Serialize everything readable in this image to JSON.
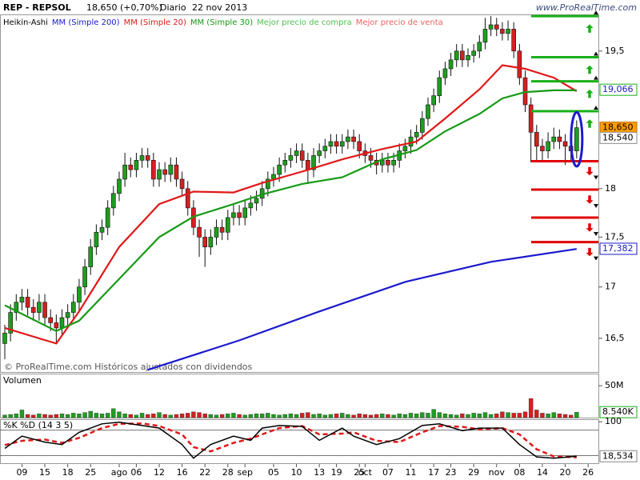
{
  "header": {
    "symbol": "REP - REPSOL",
    "price": "18,650 (+0,70%)",
    "period": "Diario",
    "date": "22 nov 2013",
    "brand": "www.ProRealTime.com"
  },
  "footer": "© ProRealTime.com Históricos ajustados con dividendos",
  "chart_data": [
    {
      "type": "candlestick",
      "name": "Heikin-Ashi",
      "scale": "log",
      "ylim": [
        16.18,
        19.92
      ],
      "xlim": [
        -0.84,
        103.8
      ],
      "yticks": [
        {
          "value": 16.5,
          "label": "16,5"
        },
        17,
        {
          "value": 17.5,
          "label": "17,5"
        },
        18,
        {
          "value": 19.5,
          "label": "19,5"
        }
      ],
      "up_color": "#1e9e1e",
      "down_color": "#d42020",
      "candles": [
        [
          16.45,
          16.63,
          16.3,
          16.55
        ],
        [
          16.55,
          16.83,
          16.47,
          16.75
        ],
        [
          16.75,
          16.93,
          16.67,
          16.85
        ],
        [
          16.85,
          16.98,
          16.77,
          16.9
        ],
        [
          16.9,
          16.98,
          16.72,
          16.8
        ],
        [
          16.8,
          16.88,
          16.67,
          16.75
        ],
        [
          16.75,
          16.93,
          16.67,
          16.85
        ],
        [
          16.85,
          16.93,
          16.62,
          16.7
        ],
        [
          16.7,
          16.78,
          16.57,
          16.65
        ],
        [
          16.65,
          16.73,
          16.45,
          16.6
        ],
        [
          16.6,
          16.78,
          16.52,
          16.7
        ],
        [
          16.7,
          16.83,
          16.62,
          16.75
        ],
        [
          16.75,
          16.93,
          16.67,
          16.85
        ],
        [
          16.85,
          17.08,
          16.77,
          17.0
        ],
        [
          17.0,
          17.28,
          16.92,
          17.2
        ],
        [
          17.2,
          17.48,
          17.12,
          17.4
        ],
        [
          17.4,
          17.63,
          17.32,
          17.55
        ],
        [
          17.55,
          17.68,
          17.47,
          17.6
        ],
        [
          17.6,
          17.88,
          17.52,
          17.8
        ],
        [
          17.8,
          18.03,
          17.72,
          17.95
        ],
        [
          17.95,
          18.18,
          17.87,
          18.1
        ],
        [
          18.1,
          18.38,
          18.02,
          18.25
        ],
        [
          18.25,
          18.33,
          18.12,
          18.2
        ],
        [
          18.2,
          18.38,
          18.12,
          18.3
        ],
        [
          18.3,
          18.43,
          18.22,
          18.35
        ],
        [
          18.35,
          18.43,
          18.22,
          18.3
        ],
        [
          18.3,
          18.38,
          18.02,
          18.1
        ],
        [
          18.1,
          18.28,
          18.02,
          18.2
        ],
        [
          18.2,
          18.28,
          18.07,
          18.15
        ],
        [
          18.15,
          18.33,
          18.07,
          18.25
        ],
        [
          18.25,
          18.33,
          18.02,
          18.1
        ],
        [
          18.1,
          18.18,
          17.92,
          18.0
        ],
        [
          18.0,
          18.08,
          17.72,
          17.8
        ],
        [
          17.8,
          17.88,
          17.52,
          17.6
        ],
        [
          17.6,
          17.68,
          17.3,
          17.5
        ],
        [
          17.5,
          17.58,
          17.2,
          17.4
        ],
        [
          17.4,
          17.58,
          17.32,
          17.5
        ],
        [
          17.5,
          17.68,
          17.42,
          17.6
        ],
        [
          17.6,
          17.68,
          17.47,
          17.55
        ],
        [
          17.55,
          17.78,
          17.47,
          17.7
        ],
        [
          17.7,
          17.83,
          17.62,
          17.75
        ],
        [
          17.75,
          17.83,
          17.62,
          17.7
        ],
        [
          17.7,
          17.88,
          17.62,
          17.8
        ],
        [
          17.8,
          17.93,
          17.72,
          17.85
        ],
        [
          17.85,
          17.98,
          17.77,
          17.9
        ],
        [
          17.9,
          18.08,
          17.82,
          18.0
        ],
        [
          18.0,
          18.18,
          17.92,
          18.1
        ],
        [
          18.1,
          18.23,
          18.02,
          18.15
        ],
        [
          18.15,
          18.33,
          18.07,
          18.25
        ],
        [
          18.25,
          18.38,
          18.17,
          18.3
        ],
        [
          18.3,
          18.43,
          18.22,
          18.35
        ],
        [
          18.35,
          18.48,
          18.27,
          18.4
        ],
        [
          18.4,
          18.48,
          18.22,
          18.3
        ],
        [
          18.3,
          18.38,
          18.05,
          18.2
        ],
        [
          18.2,
          18.43,
          18.12,
          18.35
        ],
        [
          18.35,
          18.48,
          18.27,
          18.4
        ],
        [
          18.4,
          18.53,
          18.32,
          18.45
        ],
        [
          18.45,
          18.58,
          18.37,
          18.5
        ],
        [
          18.5,
          18.58,
          18.37,
          18.45
        ],
        [
          18.45,
          18.58,
          18.37,
          18.5
        ],
        [
          18.5,
          18.63,
          18.42,
          18.55
        ],
        [
          18.55,
          18.63,
          18.42,
          18.5
        ],
        [
          18.5,
          18.58,
          18.32,
          18.4
        ],
        [
          18.4,
          18.48,
          18.27,
          18.35
        ],
        [
          18.35,
          18.43,
          18.22,
          18.3
        ],
        [
          18.3,
          18.38,
          18.15,
          18.25
        ],
        [
          18.25,
          18.38,
          18.17,
          18.3
        ],
        [
          18.3,
          18.38,
          18.17,
          18.25
        ],
        [
          18.25,
          18.38,
          18.17,
          18.3
        ],
        [
          18.3,
          18.48,
          18.22,
          18.4
        ],
        [
          18.4,
          18.53,
          18.32,
          18.45
        ],
        [
          18.45,
          18.63,
          18.37,
          18.55
        ],
        [
          18.55,
          18.68,
          18.47,
          18.6
        ],
        [
          18.6,
          18.83,
          18.52,
          18.75
        ],
        [
          18.75,
          18.98,
          18.67,
          18.9
        ],
        [
          18.9,
          19.08,
          18.82,
          19.0
        ],
        [
          19.0,
          19.28,
          18.92,
          19.2
        ],
        [
          19.2,
          19.38,
          19.12,
          19.3
        ],
        [
          19.3,
          19.48,
          19.22,
          19.4
        ],
        [
          19.4,
          19.58,
          19.32,
          19.5
        ],
        [
          19.5,
          19.58,
          19.32,
          19.4
        ],
        [
          19.4,
          19.53,
          19.32,
          19.45
        ],
        [
          19.45,
          19.58,
          19.37,
          19.5
        ],
        [
          19.5,
          19.68,
          19.42,
          19.6
        ],
        [
          19.6,
          19.88,
          19.52,
          19.75
        ],
        [
          19.75,
          19.9,
          19.67,
          19.8
        ],
        [
          19.8,
          19.88,
          19.67,
          19.75
        ],
        [
          19.75,
          19.83,
          19.62,
          19.7
        ],
        [
          19.7,
          19.85,
          19.62,
          19.75
        ],
        [
          19.75,
          19.83,
          19.42,
          19.5
        ],
        [
          19.5,
          19.58,
          19.12,
          19.2
        ],
        [
          19.2,
          19.28,
          18.82,
          18.9
        ],
        [
          18.9,
          18.98,
          18.28,
          18.6
        ],
        [
          18.6,
          18.68,
          18.3,
          18.45
        ],
        [
          18.45,
          18.53,
          18.3,
          18.4
        ],
        [
          18.4,
          18.6,
          18.32,
          18.5
        ],
        [
          18.5,
          18.65,
          18.42,
          18.55
        ],
        [
          18.55,
          18.63,
          18.42,
          18.5
        ],
        [
          18.5,
          18.58,
          18.25,
          18.45
        ],
        [
          18.45,
          18.53,
          18.3,
          18.4
        ],
        [
          18.4,
          18.73,
          18.32,
          18.65
        ]
      ],
      "series": [
        {
          "name": "MM (Simple 200)",
          "color": "#1a1acc",
          "x": [
            25,
            41,
            55,
            70,
            85,
            100
          ],
          "values": [
            16.2,
            16.48,
            16.76,
            17.05,
            17.25,
            17.38
          ]
        },
        {
          "name": "MM (Simple 20)",
          "color": "#e01818",
          "x": [
            0,
            9,
            13,
            20,
            27,
            33,
            40,
            45,
            52,
            59,
            66,
            72,
            77,
            83,
            87,
            91,
            96,
            100
          ],
          "values": [
            16.6,
            16.45,
            16.76,
            17.4,
            17.84,
            17.97,
            17.96,
            18.06,
            18.18,
            18.31,
            18.42,
            18.5,
            18.75,
            19.07,
            19.34,
            19.3,
            19.2,
            19.05
          ]
        },
        {
          "name": "MM (Simple 30)",
          "color": "#169a16",
          "x": [
            0,
            9,
            13,
            20,
            27,
            33,
            40,
            45,
            52,
            59,
            66,
            72,
            77,
            83,
            87,
            91,
            96,
            100
          ],
          "values": [
            16.82,
            16.57,
            16.67,
            17.08,
            17.5,
            17.71,
            17.84,
            17.94,
            18.05,
            18.12,
            18.31,
            18.41,
            18.61,
            18.8,
            18.97,
            19.04,
            19.06,
            19.06
          ]
        }
      ],
      "levels": [
        {
          "name": "Mejor precio de compra",
          "legend_color": "#50c050",
          "color": "#18b018",
          "values": [
            19.9,
            19.43,
            19.16,
            18.83
          ]
        },
        {
          "name": "Mejor precio de venta",
          "legend_color": "#f06060",
          "color": "#e00000",
          "values": [
            18.29,
            17.99,
            17.7,
            17.45
          ]
        }
      ],
      "price_tags": [
        {
          "value": 19.066,
          "label": "19,066",
          "color": "#1a1acc",
          "fill": "#ffffff",
          "border": "#18b018"
        },
        {
          "value": 18.65,
          "label": "18,650",
          "color": "#000000",
          "fill": "#ff9c00",
          "border": "#c07000"
        },
        {
          "value": 18.54,
          "label": "18,540",
          "color": "#000000",
          "fill": "#ffffff",
          "border": "#888888"
        },
        {
          "value": 17.382,
          "label": "17,382",
          "color": "#1a1acc",
          "fill": "#ffffff",
          "border": "#1a1acc"
        }
      ]
    },
    {
      "type": "bar",
      "title": "Volumen",
      "ylim": [
        0,
        69
      ],
      "yticks": [
        {
          "value": 50,
          "label": "50M"
        }
      ],
      "values": [
        4,
        5,
        6,
        12,
        5,
        4,
        6,
        5,
        4,
        5,
        6,
        5,
        7,
        6,
        8,
        10,
        7,
        6,
        7,
        14,
        9,
        6,
        5,
        4,
        7,
        5,
        6,
        8,
        5,
        4,
        5,
        6,
        7,
        9,
        8,
        6,
        5,
        4,
        5,
        6,
        7,
        5,
        4,
        5,
        6,
        6,
        7,
        5,
        4,
        5,
        6,
        5,
        7,
        8,
        5,
        6,
        4,
        5,
        6,
        7,
        5,
        4,
        6,
        5,
        4,
        5,
        6,
        5,
        4,
        6,
        5,
        7,
        6,
        8,
        7,
        13,
        8,
        6,
        5,
        4,
        6,
        5,
        7,
        6,
        8,
        5,
        6,
        9,
        8,
        7,
        7,
        9,
        30,
        12,
        7,
        6,
        8,
        6,
        5,
        4,
        8.54
      ],
      "price_tags": [
        {
          "value": 8.54,
          "label": "8.540K",
          "color": "#000000",
          "fill": "#ffffff",
          "border": "#18b018"
        }
      ]
    },
    {
      "type": "line",
      "title": "%K %D (14 3 5)",
      "ylim": [
        2,
        106
      ],
      "yticks": [
        100
      ],
      "guides": [
        80,
        20
      ],
      "series": [
        {
          "name": "%K",
          "color": "#000000",
          "x": [
            0,
            3,
            7,
            10,
            13,
            17,
            20,
            24,
            27,
            31,
            33,
            36,
            40,
            43,
            45,
            48,
            52,
            55,
            59,
            61,
            65,
            69,
            73,
            76,
            80,
            83,
            87,
            90,
            93,
            96,
            100
          ],
          "values": [
            37,
            66,
            52,
            46,
            75,
            95,
            99,
            91,
            85,
            46,
            14,
            46,
            66,
            56,
            85,
            91,
            89,
            56,
            85,
            66,
            46,
            60,
            91,
            95,
            79,
            85,
            85,
            46,
            17,
            14,
            18.534
          ]
        },
        {
          "name": "%D",
          "color": "#e01818",
          "x": [
            0,
            3,
            7,
            10,
            13,
            17,
            20,
            24,
            27,
            31,
            33,
            36,
            40,
            43,
            45,
            48,
            52,
            55,
            59,
            61,
            65,
            69,
            73,
            76,
            80,
            83,
            87,
            90,
            93,
            96,
            100
          ],
          "values": [
            45,
            55,
            58,
            50,
            62,
            85,
            95,
            96,
            90,
            70,
            40,
            30,
            50,
            60,
            70,
            85,
            90,
            70,
            72,
            75,
            55,
            52,
            75,
            90,
            88,
            82,
            85,
            70,
            35,
            18,
            16
          ]
        }
      ],
      "xticks": [
        {
          "value": 3,
          "label": "09"
        },
        {
          "value": 7,
          "label": "15"
        },
        {
          "value": 11,
          "label": "18"
        },
        {
          "value": 15,
          "label": "25"
        },
        {
          "value": 20,
          "label": "ago"
        },
        {
          "value": 23,
          "label": "06"
        },
        {
          "value": 27,
          "label": "12"
        },
        {
          "value": 31,
          "label": "16"
        },
        {
          "value": 35,
          "label": "22"
        },
        {
          "value": 39,
          "label": "28"
        },
        {
          "value": 42,
          "label": "sep"
        },
        {
          "value": 47,
          "label": "05"
        },
        {
          "value": 51,
          "label": "10"
        },
        {
          "value": 55,
          "label": "13"
        },
        {
          "value": 58,
          "label": "19"
        },
        {
          "value": 62,
          "label": "25"
        },
        {
          "value": 63,
          "label": "oct"
        },
        {
          "value": 67,
          "label": "07"
        },
        {
          "value": 71,
          "label": "11"
        },
        {
          "value": 75,
          "label": "17"
        },
        {
          "value": 78,
          "label": "23"
        },
        {
          "value": 82,
          "label": "29"
        },
        {
          "value": 86,
          "label": "nov"
        },
        {
          "value": 90,
          "label": "08"
        },
        {
          "value": 94,
          "label": "14"
        },
        {
          "value": 98,
          "label": "20"
        },
        {
          "value": 102,
          "label": "26"
        }
      ],
      "price_tags": [
        {
          "value": 18.534,
          "label": "18,534",
          "color": "#000000",
          "fill": "#ffffff",
          "border": "#888888"
        }
      ]
    }
  ]
}
